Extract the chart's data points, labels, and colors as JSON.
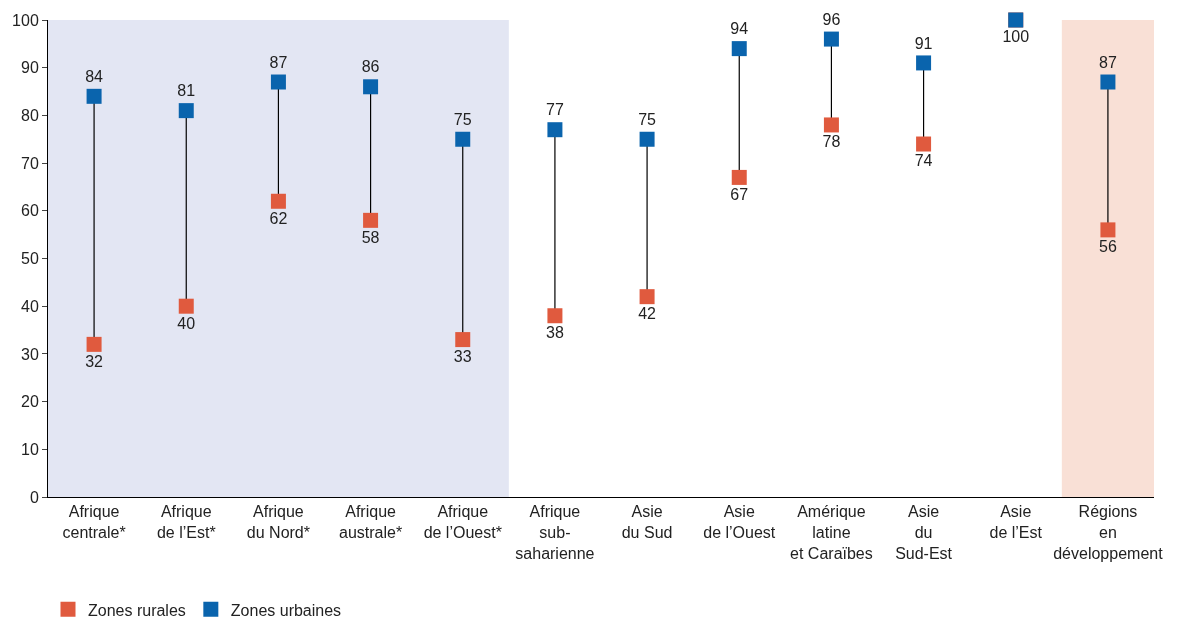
{
  "chart_data": {
    "type": "scatter",
    "categories": [
      "Afrique\ncentrale*",
      "Afrique\nde l’Est*",
      "Afrique\ndu Nord*",
      "Afrique\naustrale*",
      "Afrique\nde l’Ouest*",
      "Afrique\nsub-\nsaharienne",
      "Asie\ndu Sud",
      "Asie\nde l’Ouest",
      "Amérique\nlatine\net Caraïbes",
      "Asie\ndu\nSud-Est",
      "Asie\nde l’Est",
      "Régions\nen\ndéveloppement"
    ],
    "series": [
      {
        "name": "Zones rurales",
        "color": "#e05a3e",
        "values": [
          32,
          40,
          62,
          58,
          33,
          38,
          42,
          67,
          78,
          74,
          100,
          56
        ],
        "value_labels": [
          "32",
          "40",
          "62",
          "58",
          "33",
          "38",
          "42",
          "67",
          "78",
          "74",
          "100",
          "56"
        ]
      },
      {
        "name": "Zones urbaines",
        "color": "#0a64ad",
        "values": [
          84,
          81,
          87,
          86,
          75,
          77,
          75,
          94,
          96,
          91,
          100,
          87
        ],
        "value_labels": [
          "84",
          "81",
          "87",
          "86",
          "75",
          "77",
          "75",
          "94",
          "96",
          "91",
          null,
          "87"
        ]
      }
    ],
    "ylim": [
      0,
      100
    ],
    "yticks": [
      0,
      10,
      20,
      30,
      40,
      50,
      60,
      70,
      80,
      90,
      100
    ],
    "bands": [
      {
        "axis": "x",
        "from": "Afrique\ncentrale*",
        "to": "Afrique\nde l’Ouest*",
        "color": "#e3e6f3"
      },
      {
        "axis": "x",
        "from": "Régions\nen\ndéveloppement",
        "to": "Régions\nen\ndéveloppement",
        "color": "#f9e0d6"
      }
    ],
    "marker": "square",
    "legend": "bottom left",
    "grid": false
  }
}
